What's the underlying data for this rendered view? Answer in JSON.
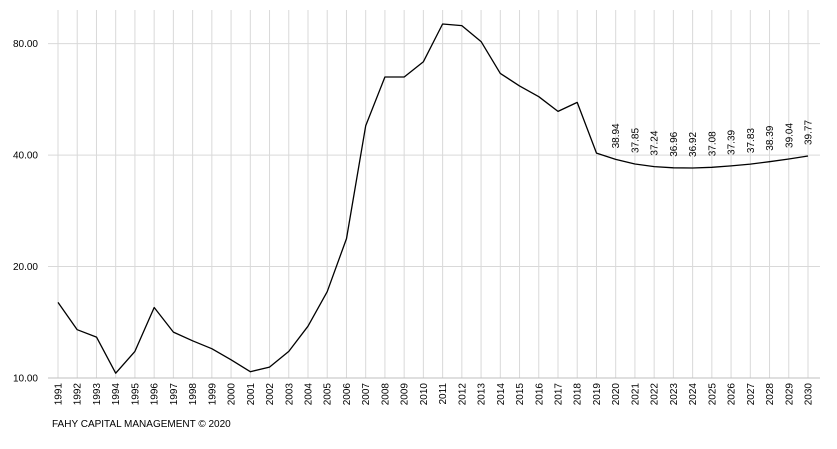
{
  "footer": {
    "credit": "FAHY CAPITAL MANAGEMENT © 2020"
  },
  "chart_data": {
    "type": "line",
    "title": "",
    "xlabel": "",
    "ylabel": "",
    "scale": "log",
    "ylim": [
      10,
      95
    ],
    "y_ticks": [
      "10.00",
      "20.00",
      "40.00",
      "80.00"
    ],
    "y_tick_values": [
      10,
      20,
      40,
      80
    ],
    "grid": {
      "vertical": true,
      "horizontal": true
    },
    "legend": "none",
    "line_color": "#000000",
    "x": [
      "1991",
      "1992",
      "1993",
      "1994",
      "1995",
      "1996",
      "1997",
      "1998",
      "1999",
      "2000",
      "2001",
      "2002",
      "2003",
      "2004",
      "2005",
      "2006",
      "2007",
      "2008",
      "2009",
      "2010",
      "2011",
      "2012",
      "2013",
      "2014",
      "2015",
      "2016",
      "2017",
      "2018",
      "2019",
      "2020",
      "2021",
      "2022",
      "2023",
      "2024",
      "2025",
      "2026",
      "2027",
      "2028",
      "2029",
      "2030"
    ],
    "series": [
      {
        "values": [
          16.0,
          13.5,
          12.9,
          10.3,
          11.8,
          15.5,
          13.3,
          12.6,
          12.0,
          11.2,
          10.4,
          10.7,
          11.8,
          13.8,
          17.1,
          23.8,
          48.0,
          65.0,
          65.0,
          71.5,
          90.4,
          89.5,
          81.0,
          66.5,
          61.5,
          57.5,
          52.5,
          55.5,
          40.5,
          38.94,
          37.85,
          37.24,
          36.96,
          36.92,
          37.08,
          37.39,
          37.83,
          38.39,
          39.04,
          39.77
        ],
        "labels": [
          "",
          "",
          "",
          "",
          "",
          "",
          "",
          "",
          "",
          "",
          "",
          "",
          "",
          "",
          "",
          "",
          "",
          "",
          "",
          "",
          "",
          "",
          "",
          "",
          "",
          "",
          "",
          "",
          "",
          "38.94",
          "37.85",
          "37.24",
          "36.96",
          "36.92",
          "37.08",
          "37.39",
          "37.83",
          "38.39",
          "39.04",
          "39.77"
        ]
      }
    ]
  }
}
